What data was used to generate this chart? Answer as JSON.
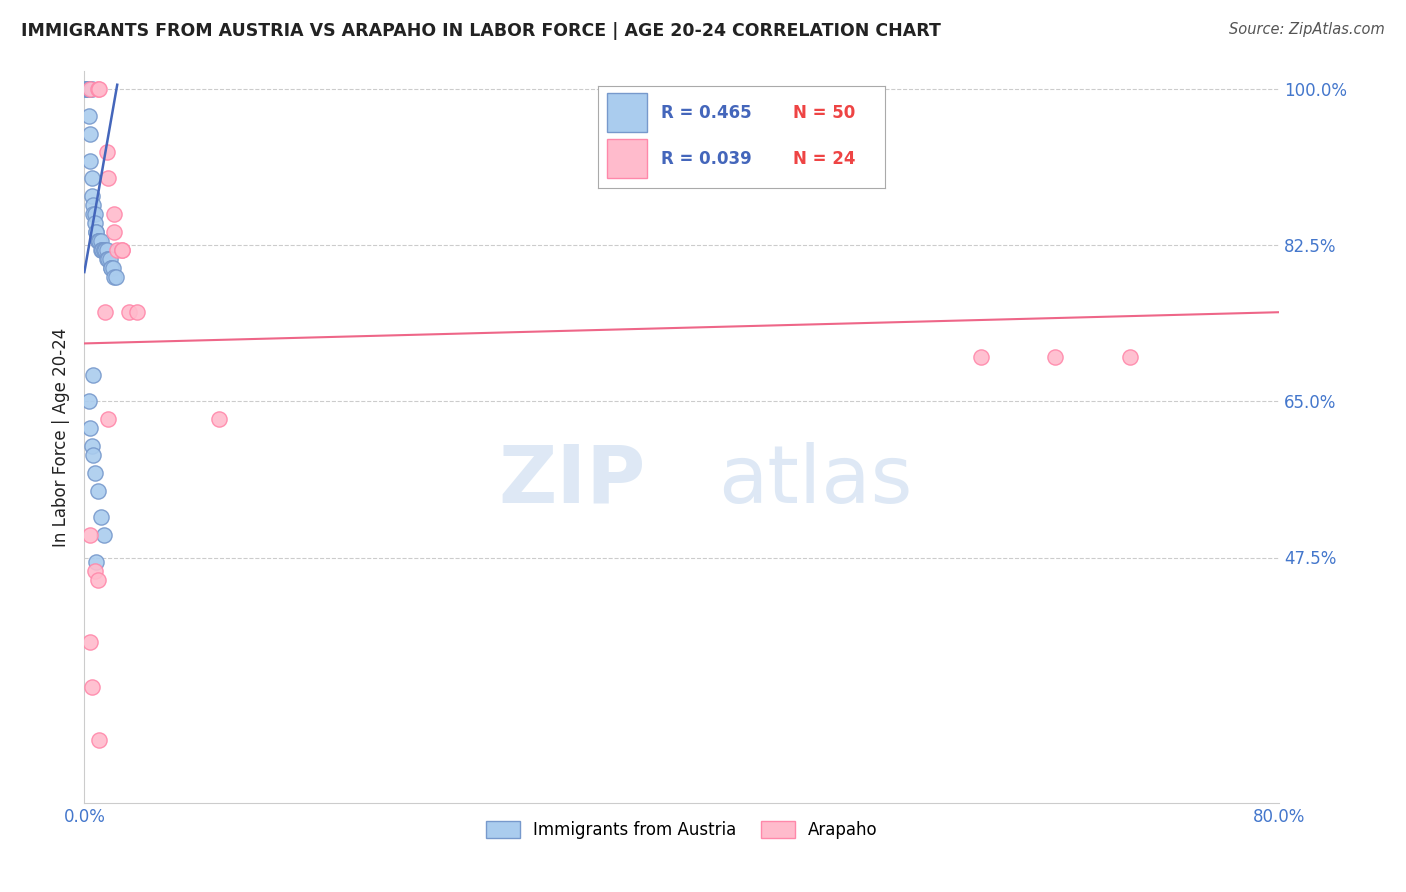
{
  "title": "IMMIGRANTS FROM AUSTRIA VS ARAPAHO IN LABOR FORCE | AGE 20-24 CORRELATION CHART",
  "source": "Source: ZipAtlas.com",
  "ylabel": "In Labor Force | Age 20-24",
  "watermark_top": "ZIP",
  "watermark_bot": "atlas",
  "xlim": [
    0.0,
    0.8
  ],
  "ylim": [
    0.2,
    1.02
  ],
  "xticks": [
    0.0,
    0.1,
    0.2,
    0.3,
    0.4,
    0.5,
    0.6,
    0.7,
    0.8
  ],
  "xticklabels": [
    "0.0%",
    "",
    "",
    "",
    "",
    "",
    "",
    "",
    "80.0%"
  ],
  "yticks": [
    0.475,
    0.65,
    0.825,
    1.0
  ],
  "yticklabels": [
    "47.5%",
    "65.0%",
    "82.5%",
    "100.0%"
  ],
  "blue_scatter_color_face": "#AACCEE",
  "blue_scatter_color_edge": "#7799CC",
  "pink_scatter_color_face": "#FFBBCC",
  "pink_scatter_color_edge": "#FF88AA",
  "blue_line_color": "#4466BB",
  "pink_line_color": "#EE6688",
  "legend_blue_r": "R = 0.465",
  "legend_blue_n": "N = 50",
  "legend_pink_r": "R = 0.039",
  "legend_pink_n": "N = 24",
  "blue_r_color": "#4466BB",
  "blue_n_color": "#EE4444",
  "pink_r_color": "#4466BB",
  "pink_n_color": "#EE4444",
  "blue_scatter_x": [
    0.001,
    0.001,
    0.001,
    0.002,
    0.002,
    0.003,
    0.003,
    0.003,
    0.004,
    0.004,
    0.004,
    0.005,
    0.005,
    0.005,
    0.006,
    0.006,
    0.007,
    0.007,
    0.008,
    0.008,
    0.009,
    0.009,
    0.01,
    0.01,
    0.011,
    0.011,
    0.012,
    0.012,
    0.013,
    0.013,
    0.014,
    0.015,
    0.015,
    0.016,
    0.017,
    0.018,
    0.018,
    0.019,
    0.02,
    0.021,
    0.003,
    0.004,
    0.005,
    0.006,
    0.007,
    0.009,
    0.011,
    0.013,
    0.006,
    0.008
  ],
  "blue_scatter_y": [
    1.0,
    1.0,
    1.0,
    1.0,
    1.0,
    1.0,
    1.0,
    0.97,
    1.0,
    0.95,
    0.92,
    1.0,
    0.9,
    0.88,
    0.87,
    0.86,
    0.86,
    0.85,
    0.84,
    0.84,
    0.83,
    0.83,
    0.83,
    0.83,
    0.83,
    0.82,
    0.82,
    0.82,
    0.82,
    0.82,
    0.82,
    0.82,
    0.81,
    0.81,
    0.81,
    0.8,
    0.8,
    0.8,
    0.79,
    0.79,
    0.65,
    0.62,
    0.6,
    0.59,
    0.57,
    0.55,
    0.52,
    0.5,
    0.68,
    0.47
  ],
  "pink_scatter_x": [
    0.004,
    0.009,
    0.01,
    0.015,
    0.016,
    0.02,
    0.02,
    0.022,
    0.025,
    0.025,
    0.03,
    0.035,
    0.004,
    0.007,
    0.009,
    0.014,
    0.016,
    0.09,
    0.6,
    0.65,
    0.7,
    0.004,
    0.005,
    0.01
  ],
  "pink_scatter_y": [
    1.0,
    1.0,
    1.0,
    0.93,
    0.9,
    0.86,
    0.84,
    0.82,
    0.82,
    0.82,
    0.75,
    0.75,
    0.5,
    0.46,
    0.45,
    0.75,
    0.63,
    0.63,
    0.7,
    0.7,
    0.7,
    0.38,
    0.33,
    0.27
  ],
  "blue_trend_x": [
    0.0,
    0.022
  ],
  "blue_trend_y": [
    0.795,
    1.005
  ],
  "pink_trend_x": [
    0.0,
    0.8
  ],
  "pink_trend_y": [
    0.715,
    0.75
  ],
  "grid_color": "#CCCCCC",
  "background_color": "#FFFFFF",
  "tick_color": "#4477CC",
  "title_color": "#222222",
  "ylabel_color": "#222222",
  "source_color": "#555555",
  "legend_box_color": "#DDDDDD"
}
